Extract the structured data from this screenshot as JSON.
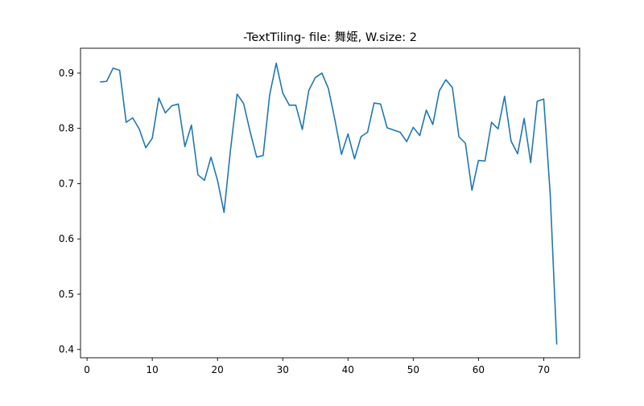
{
  "chart_data": {
    "type": "line",
    "title": "-TextTiling- file: 舞姫, W.size: 2",
    "xlabel": "",
    "ylabel": "",
    "xlim": [
      -1,
      75.5
    ],
    "ylim": [
      0.385,
      0.945
    ],
    "grid": false,
    "x_ticks": [
      0,
      10,
      20,
      30,
      40,
      50,
      60,
      70
    ],
    "x_tick_labels": [
      "0",
      "10",
      "20",
      "30",
      "40",
      "50",
      "60",
      "70"
    ],
    "y_ticks": [
      0.4,
      0.5,
      0.6,
      0.7,
      0.8,
      0.9
    ],
    "y_tick_labels": [
      "0.4",
      "0.5",
      "0.6",
      "0.7",
      "0.8",
      "0.9"
    ],
    "series": [
      {
        "color": "#1f77b4",
        "x": [
          2,
          3,
          4,
          5,
          6,
          7,
          8,
          9,
          10,
          11,
          12,
          13,
          14,
          15,
          16,
          17,
          18,
          19,
          20,
          21,
          22,
          23,
          24,
          25,
          26,
          27,
          28,
          29,
          30,
          31,
          32,
          33,
          34,
          35,
          36,
          37,
          38,
          39,
          40,
          41,
          42,
          43,
          44,
          45,
          46,
          47,
          48,
          49,
          50,
          51,
          52,
          53,
          54,
          55,
          56,
          57,
          58,
          59,
          60,
          61,
          62,
          63,
          64,
          65,
          66,
          67,
          68,
          69,
          70,
          71,
          72
        ],
        "values": [
          0.884,
          0.885,
          0.909,
          0.905,
          0.811,
          0.819,
          0.799,
          0.765,
          0.782,
          0.855,
          0.828,
          0.841,
          0.844,
          0.767,
          0.806,
          0.716,
          0.706,
          0.748,
          0.706,
          0.648,
          0.762,
          0.862,
          0.845,
          0.794,
          0.748,
          0.751,
          0.861,
          0.918,
          0.864,
          0.842,
          0.842,
          0.798,
          0.869,
          0.892,
          0.9,
          0.872,
          0.815,
          0.753,
          0.79,
          0.745,
          0.785,
          0.793,
          0.846,
          0.844,
          0.801,
          0.797,
          0.793,
          0.776,
          0.802,
          0.787,
          0.833,
          0.807,
          0.868,
          0.888,
          0.874,
          0.785,
          0.773,
          0.688,
          0.742,
          0.741,
          0.811,
          0.799,
          0.858,
          0.777,
          0.754,
          0.818,
          0.738,
          0.849,
          0.853,
          0.68,
          0.409
        ]
      }
    ]
  }
}
